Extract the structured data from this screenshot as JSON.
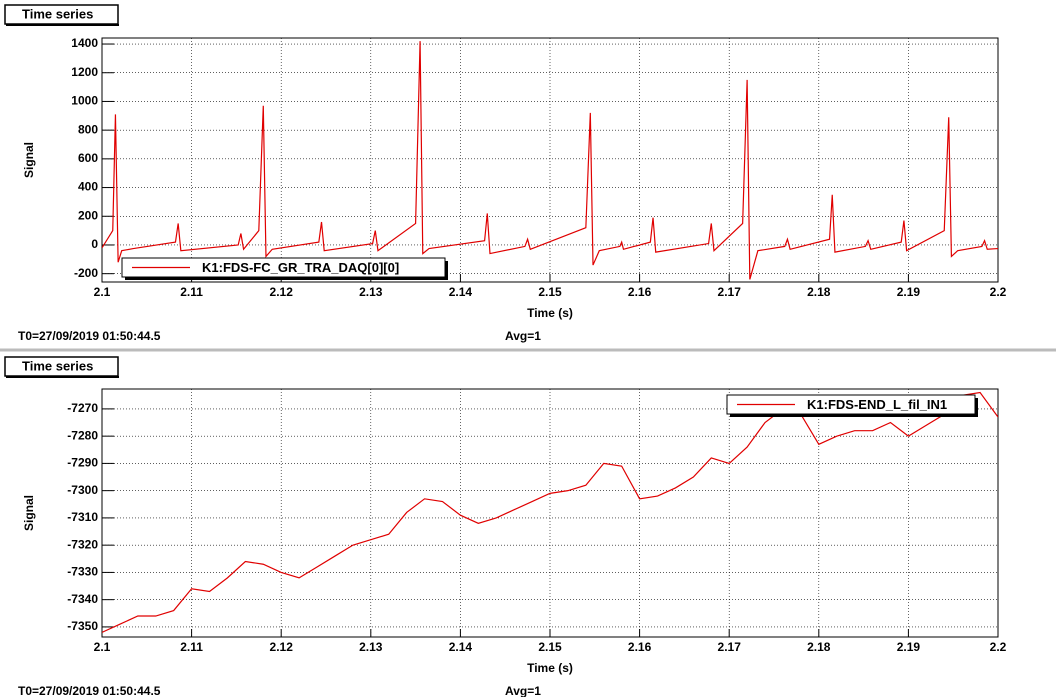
{
  "chart_data": [
    {
      "type": "line",
      "tab_label": "Time series",
      "xlabel": "Time (s)",
      "ylabel": "Signal",
      "footer_left": "T0=27/09/2019 01:50:44.5",
      "footer_right": "Avg=1",
      "xlim": [
        2.1,
        2.2
      ],
      "xticks": [
        2.1,
        2.11,
        2.12,
        2.13,
        2.14,
        2.15,
        2.16,
        2.17,
        2.18,
        2.19,
        2.2
      ],
      "ylim": [
        -258,
        1442
      ],
      "yticks": [
        -200,
        0,
        200,
        400,
        600,
        800,
        1000,
        1200,
        1400
      ],
      "grid": true,
      "legend": "bottom-left",
      "x": [
        2.1,
        2.1012,
        2.1015,
        2.1018,
        2.1022,
        2.1035,
        2.1082,
        2.1085,
        2.1088,
        2.1152,
        2.1155,
        2.1158,
        2.1175,
        2.118,
        2.1183,
        2.119,
        2.1242,
        2.1245,
        2.1248,
        2.1302,
        2.1305,
        2.1308,
        2.135,
        2.1355,
        2.1358,
        2.1365,
        2.1427,
        2.143,
        2.1433,
        2.1472,
        2.1475,
        2.1478,
        2.154,
        2.1545,
        2.1548,
        2.1555,
        2.1578,
        2.158,
        2.1582,
        2.1612,
        2.1615,
        2.1618,
        2.1677,
        2.168,
        2.1683,
        2.1715,
        2.172,
        2.1723,
        2.1732,
        2.1762,
        2.1765,
        2.1768,
        2.1812,
        2.1815,
        2.1818,
        2.1852,
        2.1855,
        2.1858,
        2.1892,
        2.1895,
        2.1898,
        2.194,
        2.1945,
        2.1948,
        2.1955,
        2.1982,
        2.1985,
        2.1988,
        2.2
      ],
      "series": [
        {
          "name": "K1:FDS-FC_GR_TRA_DAQ[0][0]",
          "color": "#e00000",
          "values": [
            -20,
            100,
            910,
            -120,
            -40,
            -25,
            20,
            150,
            -40,
            0,
            80,
            -30,
            100,
            970,
            -80,
            -30,
            20,
            160,
            -40,
            10,
            100,
            -40,
            150,
            1420,
            -60,
            -25,
            30,
            220,
            -60,
            -10,
            40,
            -30,
            120,
            920,
            -140,
            -40,
            -10,
            20,
            -30,
            20,
            190,
            -50,
            10,
            150,
            -40,
            150,
            1150,
            -240,
            -40,
            -10,
            40,
            -30,
            40,
            350,
            -50,
            -10,
            30,
            -30,
            20,
            170,
            -40,
            100,
            890,
            -80,
            -40,
            -10,
            30,
            -30,
            -25
          ]
        }
      ]
    },
    {
      "type": "line",
      "tab_label": "Time series",
      "xlabel": "Time (s)",
      "ylabel": "Signal",
      "footer_left": "T0=27/09/2019 01:50:44.5",
      "footer_right": "Avg=1",
      "xlim": [
        2.1,
        2.2
      ],
      "xticks": [
        2.1,
        2.11,
        2.12,
        2.13,
        2.14,
        2.15,
        2.16,
        2.17,
        2.18,
        2.19,
        2.2
      ],
      "ylim": [
        -7353.7,
        -7262.7
      ],
      "yticks": [
        -7350,
        -7340,
        -7330,
        -7320,
        -7310,
        -7300,
        -7290,
        -7280,
        -7270
      ],
      "grid": true,
      "legend": "top-right",
      "x": [
        2.1,
        2.102,
        2.104,
        2.106,
        2.108,
        2.11,
        2.112,
        2.114,
        2.116,
        2.118,
        2.12,
        2.122,
        2.124,
        2.126,
        2.128,
        2.13,
        2.132,
        2.134,
        2.136,
        2.138,
        2.14,
        2.142,
        2.144,
        2.146,
        2.148,
        2.15,
        2.152,
        2.154,
        2.156,
        2.158,
        2.16,
        2.162,
        2.164,
        2.166,
        2.168,
        2.17,
        2.172,
        2.174,
        2.176,
        2.178,
        2.18,
        2.182,
        2.184,
        2.186,
        2.188,
        2.19,
        2.192,
        2.194,
        2.196,
        2.198,
        2.2
      ],
      "series": [
        {
          "name": "K1:FDS-END_L_fil_IN1",
          "color": "#e00000",
          "values": [
            -7352,
            -7349,
            -7346,
            -7346,
            -7344,
            -7336,
            -7337,
            -7332,
            -7326,
            -7327,
            -7330,
            -7332,
            -7328,
            -7324,
            -7320,
            -7318,
            -7316,
            -7308,
            -7303,
            -7304,
            -7309,
            -7312,
            -7310,
            -7307,
            -7304,
            -7301,
            -7300,
            -7298,
            -7290,
            -7291,
            -7303,
            -7302,
            -7299,
            -7295,
            -7288,
            -7290,
            -7284,
            -7275,
            -7270,
            -7272,
            -7283,
            -7280,
            -7278,
            -7278,
            -7275,
            -7280,
            -7276,
            -7272,
            -7265,
            -7264,
            -7273
          ]
        }
      ]
    }
  ]
}
